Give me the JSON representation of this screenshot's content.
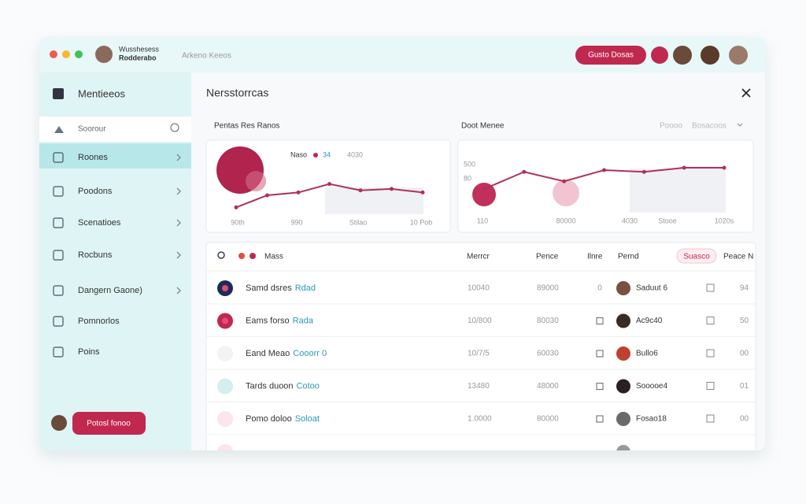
{
  "titlebar": {
    "app_name": [
      "Wusshesess",
      "Rodderabo"
    ],
    "subtitle": "Arkeno Keeos",
    "button": "Gusto Dosas"
  },
  "sidebar": {
    "title": "Mentieeos",
    "search": "Soorour",
    "items": [
      "Roones",
      "Poodons",
      "Scenatioes",
      "Rocbuns",
      "Dangern Gaone)",
      "Pomnorlos",
      "Poins"
    ],
    "button": "Potosl fonoo"
  },
  "main": {
    "title": "Nersstorrcas"
  },
  "charts": [
    {
      "type": "line",
      "title": "Pentas Res Ranos",
      "legend": [
        "Naso",
        "34",
        "4030"
      ],
      "x_labels": [
        "90th",
        "990",
        "Stilao",
        "10 Pob"
      ],
      "values": [
        13,
        30,
        34,
        46,
        37,
        39,
        34
      ],
      "ylim": [
        0,
        100
      ],
      "color": "#b0305a"
    },
    {
      "type": "line",
      "title": "Doot Menee",
      "header_links": [
        "Poooo",
        "Bosacoos"
      ],
      "y_labels": [
        "500",
        "80"
      ],
      "x_labels": [
        "110",
        "80000",
        "4030",
        "Stooe",
        "1020s"
      ],
      "values": [
        40,
        69,
        53,
        72,
        69,
        76,
        76
      ],
      "ylim": [
        0,
        100
      ],
      "color": "#b0305a"
    }
  ],
  "table": {
    "header": [
      "Mass",
      "Merrcr",
      "Pence",
      "Ilnre",
      "Pernd",
      "Suasco",
      "Peace N"
    ],
    "rows": [
      [
        "Samd dsres",
        "Rdad",
        "10040",
        "89000",
        "0",
        "Saduut 6",
        "94"
      ],
      [
        "Eams forso",
        "Rada",
        "10/800",
        "80030",
        "",
        "Ac9c40",
        "50"
      ],
      [
        "Eand Meao",
        "Cooorr 0",
        "10/7/5",
        "60030",
        "",
        "Bullo6",
        "00"
      ],
      [
        "Tards duoon",
        "Cotoo",
        "13480",
        "48000",
        "",
        "Sooooe4",
        "01"
      ],
      [
        "Pomo doloo",
        "Soloat",
        "1.0000",
        "80000",
        "",
        "Fosao18",
        "00"
      ]
    ]
  }
}
